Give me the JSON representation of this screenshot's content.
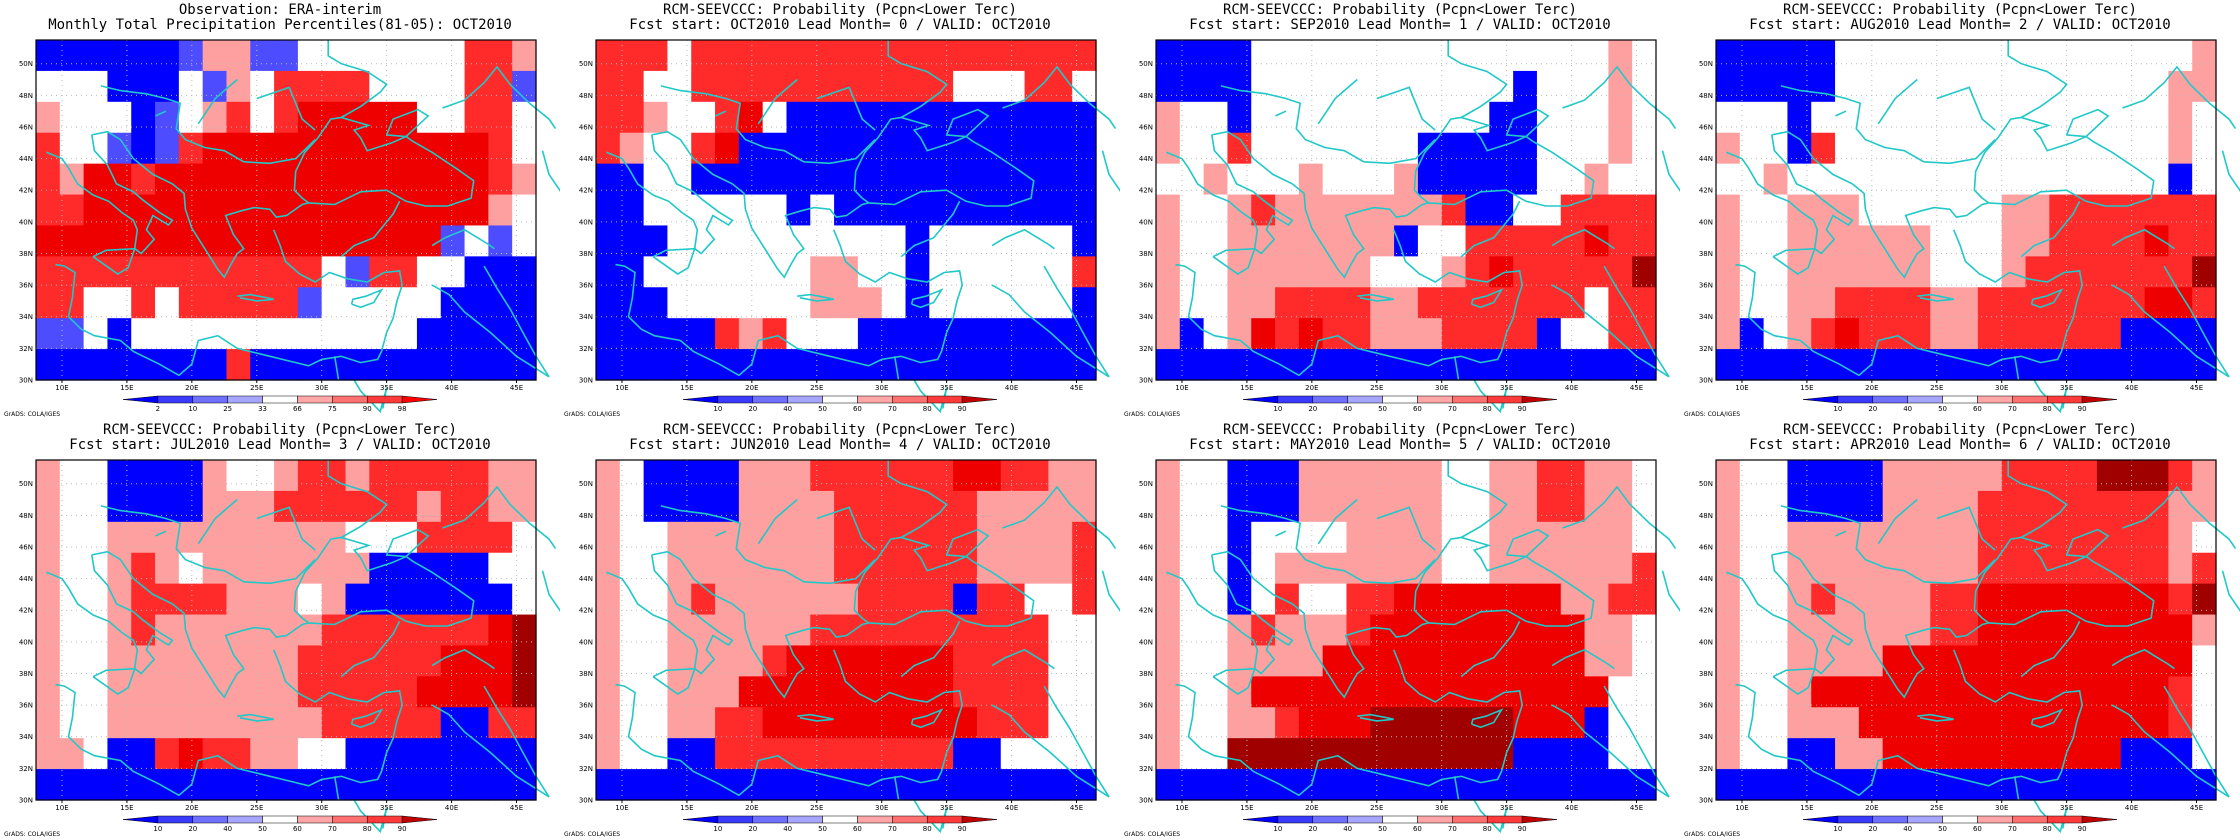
{
  "colors": {
    "deep_blue": "#0000ff",
    "mid_blue": "#4d4dff",
    "light_blue": "#9f9fff",
    "white": "#ffffff",
    "light_red": "#ff9f9f",
    "mid_red": "#ff4d4d",
    "red": "#ff0000",
    "dark_red": "#d00000",
    "darkest_red": "#9a0000",
    "coast": "#20c8c8",
    "grid_dots": "#bbbbbb"
  },
  "map": {
    "lon_ticks": [
      "10E",
      "15E",
      "20E",
      "25E",
      "30E",
      "35E",
      "40E",
      "45E"
    ],
    "lat_ticks": [
      "30N",
      "32N",
      "34N",
      "36N",
      "38N",
      "40N",
      "42N",
      "44N",
      "46N",
      "48N",
      "50N"
    ],
    "credit": "GrADS: COLA/IGES"
  },
  "panels": [
    {
      "title1": "Observation: ERA-interim",
      "title2": "Monthly Total Precipitation Percentiles(81-05): OCT2010",
      "colorbar": "percentile",
      "grid": [
        "bbbbbbmllmmwwwwwwwrrl",
        "wwwbbbwmlwrrrrwwwwrrm",
        "lwwwbmwlrwrRRRRRwwrrw",
        "rwwmbmrRRRRRRRRRRRRrw",
        "rlRRrRRRRRRRRRRRRRRrl",
        "rrRRRRRRRRRRRRRRRRRlw",
        "RRRRRRRRRRRRRRRRRmwmw",
        "rrrrrrrrrrrrwmrrwwbbb",
        "rrwwrwrrrrrmwwwwwbbbb",
        "mmwbwwwwwwwwwwwwbbbbb",
        "bbbbbbbbrbbbbbbbbbbbb"
      ]
    },
    {
      "title1": "RCM-SEEVCCC: Probability (Pcpn<Lower Terc)",
      "title2": "Fcst start: OCT2010  Lead Month= 0 / VALID: OCT2010",
      "colorbar": "probability",
      "grid": [
        "rrrwrrrrrrrrrrrrrrrrr",
        "rrwwrrrrrrrrrrrwwwrrw",
        "rrlwwrRwbbbbbbbbbbbbb",
        "rlwwrRbbbbbbbbbbbbbbb",
        "bbwwbbbbbbbbbbbbbbbbb",
        "bbwwwwwwbwbbbbbbbbbbb",
        "bbbwwwwwwwwwwbwwwwwwb",
        "bbwwwwwwwllwwbwwwwwwr",
        "bbbwwwwwwlllwbwwwwwwb",
        "bbbbbrlrwwwbbbbbbbbbb",
        "bbbbbbbbbbbbbbbbbbbbb"
      ]
    },
    {
      "title1": "RCM-SEEVCCC: Probability (Pcpn<Lower Terc)",
      "title2": "Fcst start: SEP2010  Lead Month= 1 / VALID: OCT2010",
      "colorbar": "probability",
      "grid": [
        "bbbbwwwwwwwwwwwwwwwlw",
        "bbbbwwwwwwwwwwwbwwwlw",
        "lwwbwwwwwwwwwwbbwwwlw",
        "lwwrwwwwwwwbbbbbwwwlw",
        "wwlwwwlwwwlbbbbbwwlww",
        "lwwlrlllllllrbbwwrrrr",
        "lwwlllllllbwwrrrrrRrr",
        "lwwllllllwwwlrRrrrrrD",
        "lwwllrrrrllrrrrrrrwrr",
        "lbwlRrRrrlllrrrrbwwrr",
        "bbbbbbbbbbbbbbbbbbbbb"
      ]
    },
    {
      "title1": "RCM-SEEVCCC: Probability (Pcpn<Lower Terc)",
      "title2": "Fcst start: AUG2010  Lead Month= 2 / VALID: OCT2010",
      "colorbar": "probability",
      "grid": [
        "bbbbbwwwwwwwwwwwwwwwl",
        "bbbbbwwwwwwwwwwwwwwll",
        "wwwbwwwwwwwwwwwwwwwlw",
        "lwwbrwwwwwwwwwwwwwwlw",
        "wwlwwwwwwwwwwwwwwwwbw",
        "lwwlllwwwwwwllrrrrrrr",
        "lwwllllllwwwllrrrrRrr",
        "lwwllllllwwwlrrrrrrrD",
        "lwwllrrrrllrrrrrrrRRr",
        "lbwlrRrrrllrrrrrrbbbb",
        "bbbbbbbbbbbbbbbbbbbbb"
      ]
    },
    {
      "title1": "RCM-SEEVCCC: Probability (Pcpn<Lower Terc)",
      "title2": "Fcst start: JUL2010  Lead Month= 3 / VALID: OCT2010",
      "colorbar": "probability",
      "grid": [
        "lwwbbbblwwlrrlrrrrrll",
        "lwwbbbblllrrrrrrlrrll",
        "lwwllllllllllwwwrrrrw",
        "lwwlrlwlllllllbbbbbww",
        "lwwlrrrrlllwlbbbbbbbw",
        "lwwlrlllllllrrrrrrrRD",
        "lwwllllllllrrrrrrRRRD",
        "lwwllllllllrrrrrRRRRD",
        "lwwlllllllllrrrrrbbrr",
        "llwbbrRrrllwwbbbbbbbb",
        "bbbbbbbbbbbbbbbbbbbbb"
      ]
    },
    {
      "title1": "RCM-SEEVCCC: Probability (Pcpn<Lower Terc)",
      "title2": "Fcst start: JUN2010  Lead Month= 4 / VALID: OCT2010",
      "colorbar": "probability",
      "grid": [
        "lwbbbblllrrrrrrRRrrll",
        "lwbbbbllllrrrrrrlllll",
        "lwwlllllllrrrrrrllllr",
        "lwwlllllllrrrrrrllllr",
        "lwwlrllllllrrrrbrrwwr",
        "lwwllllllrrrrrrrrrrww",
        "lwwllllrRRRRRRRrrrrww",
        "lwwlllRRRRRRRRRrrrrww",
        "lwwllrrRRRRRRRRRrrrww",
        "lwwbbrrrrrrrrrrbbwwww",
        "bbbbbbbbbbbbbbbbbbbbb"
      ]
    },
    {
      "title1": "RCM-SEEVCCC: Probability (Pcpn<Lower Terc)",
      "title2": "Fcst start: MAY2010  Lead Month= 5 / VALID: OCT2010",
      "colorbar": "probability",
      "grid": [
        "lwwbbbllllllwwllrrllw",
        "lwwbbbllllllwwllrrllw",
        "lwwbwwwwllllwwllllllw",
        "lwwbwlllllllwwllllllr",
        "lwwbwrwwrrRRRRRRRllrr",
        "lwwlrlllrRRRRRRRRRllw",
        "lwwllllRRRRRRRRRRRllw",
        "lwwlRRRRRRRRRRRRRRRww",
        "lwwllrRRRDDDDDDRRRbww",
        "lwwDDDDDDDDDDDDbbbbww",
        "bbbbbbbbbbbbbbbbbbbbb"
      ]
    },
    {
      "title1": "RCM-SEEVCCC: Probability (Pcpn<Lower Terc)",
      "title2": "Fcst start: APR2010  Lead Month= 6 / VALID: OCT2010",
      "colorbar": "probability",
      "grid": [
        "lwwbbbblllllrrrrDDDrl",
        "lwwbbbbllllrrrrrrrrll",
        "lwwllllllllrrrrrrrrlw",
        "lwwllllllllrrrrrrrrlr",
        "lwwlrllllrrRRRRRRRRrD",
        "lwwllllllrrRRRRRRRRRl",
        "lwwllllRRRRRRRRRRRRRw",
        "lwwlRRRRRRRRRRRRRRRrw",
        "lwwlllRRRRRRRRRRRRRrw",
        "lwwbbllRRRRRRRRRRbbbw",
        "bbbbbbbbbbbbbbbbbbbbb"
      ]
    }
  ],
  "colorbars": {
    "percentile": {
      "labels": [
        "2",
        "10",
        "25",
        "33",
        "66",
        "75",
        "90",
        "98"
      ],
      "colors": [
        "#0000ff",
        "#3a3aff",
        "#7070ff",
        "#a6a6ff",
        "#ffffff",
        "#ffa6a6",
        "#ff7070",
        "#ff3a3a",
        "#ff0000"
      ]
    },
    "probability": {
      "labels": [
        "10",
        "20",
        "40",
        "50",
        "60",
        "70",
        "80",
        "90"
      ],
      "colors": [
        "#0000ff",
        "#3a3aff",
        "#7070ff",
        "#a6a6ff",
        "#ffffff",
        "#ffa6a6",
        "#ff7070",
        "#ff3a3a",
        "#c00000"
      ]
    }
  }
}
